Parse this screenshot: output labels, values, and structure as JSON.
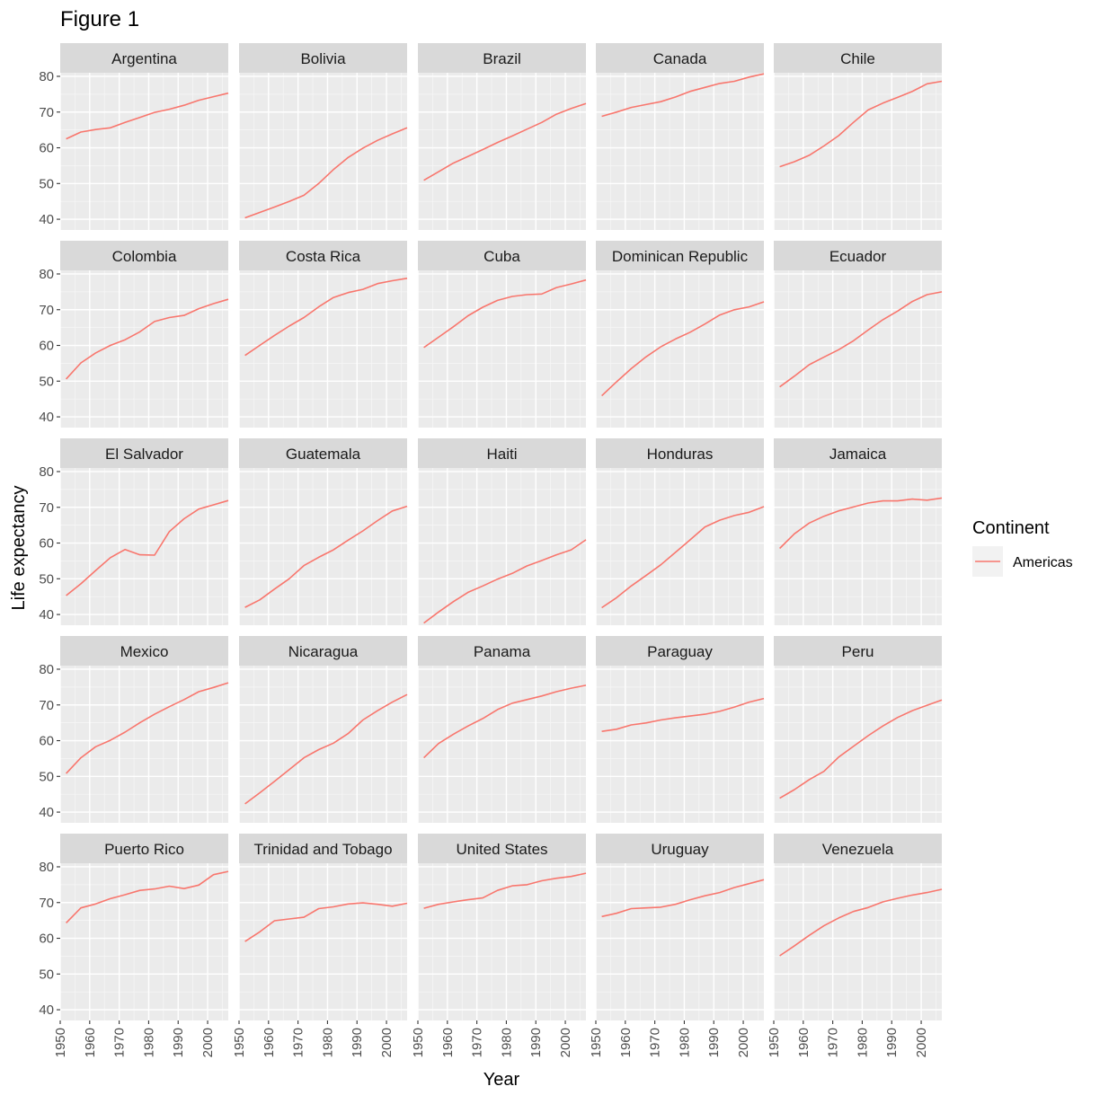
{
  "chart_data": {
    "type": "line",
    "title": "Figure 1",
    "xlabel": "Year",
    "ylabel": "Life expectancy",
    "xlim": [
      1950,
      2007
    ],
    "ylim": [
      37,
      81
    ],
    "x_ticks": [
      1950,
      1960,
      1970,
      1980,
      1990,
      2000
    ],
    "y_ticks": [
      40,
      50,
      60,
      70,
      80
    ],
    "grid": true,
    "facet_layout": {
      "rows": 5,
      "cols": 5
    },
    "legend": {
      "title": "Continent",
      "position": "right",
      "entries": [
        {
          "label": "Americas",
          "color": "#F8766D"
        }
      ]
    },
    "x": [
      1952,
      1957,
      1962,
      1967,
      1972,
      1977,
      1982,
      1987,
      1992,
      1997,
      2002,
      2007
    ],
    "panels": [
      {
        "name": "Argentina",
        "values": [
          62.5,
          64.4,
          65.1,
          65.6,
          67.1,
          68.5,
          69.9,
          70.8,
          71.9,
          73.3,
          74.3,
          75.3
        ]
      },
      {
        "name": "Bolivia",
        "values": [
          40.4,
          41.9,
          43.4,
          45.0,
          46.7,
          50.0,
          53.9,
          57.3,
          59.9,
          62.1,
          63.9,
          65.6
        ]
      },
      {
        "name": "Brazil",
        "values": [
          50.9,
          53.3,
          55.7,
          57.6,
          59.5,
          61.5,
          63.3,
          65.2,
          67.1,
          69.4,
          71.0,
          72.4
        ]
      },
      {
        "name": "Canada",
        "values": [
          68.8,
          70.0,
          71.3,
          72.1,
          72.9,
          74.2,
          75.8,
          76.9,
          78.0,
          78.6,
          79.8,
          80.7
        ]
      },
      {
        "name": "Chile",
        "values": [
          54.7,
          56.1,
          57.9,
          60.5,
          63.4,
          67.1,
          70.6,
          72.5,
          74.1,
          75.8,
          77.9,
          78.6
        ]
      },
      {
        "name": "Colombia",
        "values": [
          50.6,
          55.1,
          57.9,
          60.0,
          61.6,
          63.8,
          66.7,
          67.8,
          68.4,
          70.3,
          71.7,
          72.9
        ]
      },
      {
        "name": "Costa Rica",
        "values": [
          57.2,
          60.0,
          62.8,
          65.4,
          67.8,
          70.8,
          73.4,
          74.8,
          75.7,
          77.3,
          78.1,
          78.8
        ]
      },
      {
        "name": "Cuba",
        "values": [
          59.4,
          62.3,
          65.2,
          68.3,
          70.7,
          72.6,
          73.7,
          74.2,
          74.4,
          76.2,
          77.2,
          78.3
        ]
      },
      {
        "name": "Dominican Republic",
        "values": [
          45.9,
          49.8,
          53.5,
          56.8,
          59.6,
          61.8,
          63.7,
          66.0,
          68.5,
          70.0,
          70.8,
          72.2
        ]
      },
      {
        "name": "Ecuador",
        "values": [
          48.4,
          51.4,
          54.6,
          56.7,
          58.8,
          61.3,
          64.3,
          67.2,
          69.6,
          72.3,
          74.2,
          75.0
        ]
      },
      {
        "name": "El Salvador",
        "values": [
          45.3,
          48.6,
          52.3,
          55.9,
          58.2,
          56.7,
          56.6,
          63.2,
          66.8,
          69.5,
          70.7,
          71.9
        ]
      },
      {
        "name": "Guatemala",
        "values": [
          42.0,
          44.1,
          47.1,
          50.0,
          53.7,
          56.0,
          58.1,
          60.8,
          63.4,
          66.3,
          68.98,
          70.3
        ]
      },
      {
        "name": "Haiti",
        "values": [
          37.6,
          40.7,
          43.6,
          46.2,
          48.0,
          49.9,
          51.5,
          53.6,
          55.1,
          56.7,
          58.1,
          60.9
        ]
      },
      {
        "name": "Honduras",
        "values": [
          41.9,
          44.7,
          48.0,
          50.9,
          53.9,
          57.4,
          60.9,
          64.5,
          66.4,
          67.7,
          68.6,
          70.2
        ]
      },
      {
        "name": "Jamaica",
        "values": [
          58.5,
          62.6,
          65.6,
          67.5,
          69.0,
          70.1,
          71.2,
          71.8,
          71.8,
          72.3,
          72.0,
          72.6
        ]
      },
      {
        "name": "Mexico",
        "values": [
          50.8,
          55.2,
          58.3,
          60.1,
          62.4,
          65.0,
          67.4,
          69.5,
          71.5,
          73.7,
          74.9,
          76.2
        ]
      },
      {
        "name": "Nicaragua",
        "values": [
          42.3,
          45.4,
          48.6,
          51.9,
          55.2,
          57.5,
          59.3,
          62.0,
          65.8,
          68.4,
          70.8,
          72.9
        ]
      },
      {
        "name": "Panama",
        "values": [
          55.2,
          59.2,
          61.8,
          64.1,
          66.2,
          68.7,
          70.5,
          71.5,
          72.5,
          73.7,
          74.7,
          75.5
        ]
      },
      {
        "name": "Paraguay",
        "values": [
          62.6,
          63.2,
          64.4,
          64.95,
          65.8,
          66.4,
          66.9,
          67.4,
          68.2,
          69.4,
          70.8,
          71.8
        ]
      },
      {
        "name": "Peru",
        "values": [
          43.9,
          46.3,
          49.1,
          51.4,
          55.4,
          58.4,
          61.4,
          64.1,
          66.5,
          68.4,
          69.9,
          71.4
        ]
      },
      {
        "name": "Puerto Rico",
        "values": [
          64.3,
          68.5,
          69.6,
          71.1,
          72.2,
          73.4,
          73.8,
          74.6,
          73.9,
          74.9,
          77.8,
          78.7
        ]
      },
      {
        "name": "Trinidad and Tobago",
        "values": [
          59.1,
          61.8,
          64.9,
          65.4,
          65.9,
          68.3,
          68.8,
          69.6,
          69.9,
          69.5,
          68.98,
          69.8
        ]
      },
      {
        "name": "United States",
        "values": [
          68.4,
          69.5,
          70.2,
          70.8,
          71.3,
          73.4,
          74.7,
          75.0,
          76.1,
          76.8,
          77.3,
          78.2
        ]
      },
      {
        "name": "Uruguay",
        "values": [
          66.1,
          67.0,
          68.3,
          68.5,
          68.7,
          69.5,
          70.8,
          71.9,
          72.8,
          74.2,
          75.3,
          76.4
        ]
      },
      {
        "name": "Venezuela",
        "values": [
          55.1,
          57.9,
          60.8,
          63.5,
          65.7,
          67.5,
          68.6,
          70.2,
          71.2,
          72.1,
          72.8,
          73.7
        ]
      }
    ]
  }
}
